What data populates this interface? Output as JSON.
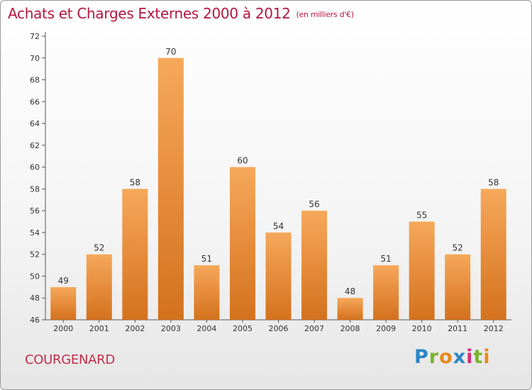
{
  "chart_data": {
    "type": "bar",
    "title": "Achats et Charges Externes 2000 à 2012",
    "subtitle": "(en milliers d'€)",
    "categories": [
      "2000",
      "2001",
      "2002",
      "2003",
      "2004",
      "2005",
      "2006",
      "2007",
      "2008",
      "2009",
      "2010",
      "2011",
      "2012"
    ],
    "values": [
      49,
      52,
      58,
      70,
      51,
      60,
      54,
      56,
      48,
      51,
      55,
      52,
      58
    ],
    "ylim": [
      46,
      72
    ],
    "yticks": [
      46,
      48,
      50,
      52,
      54,
      56,
      58,
      60,
      62,
      64,
      66,
      68,
      70,
      72
    ],
    "xlabel": "",
    "ylabel": "",
    "grid": false,
    "data_labels": true,
    "colors": {
      "bar_top": "#f6a85a",
      "bar_bottom": "#d4711d",
      "title": "#b5163e",
      "axis": "#555555"
    }
  },
  "footer": {
    "commune": "COURGENARD",
    "logo_letters": [
      {
        "ch": "P",
        "color": "#2a86c8"
      },
      {
        "ch": "r",
        "color": "#7ab32e"
      },
      {
        "ch": "o",
        "color": "#e8891c"
      },
      {
        "ch": "x",
        "color": "#2a86c8"
      },
      {
        "ch": "i",
        "color": "#d62e7a"
      },
      {
        "ch": "t",
        "color": "#7ab32e"
      },
      {
        "ch": "i",
        "color": "#e8891c"
      }
    ]
  }
}
